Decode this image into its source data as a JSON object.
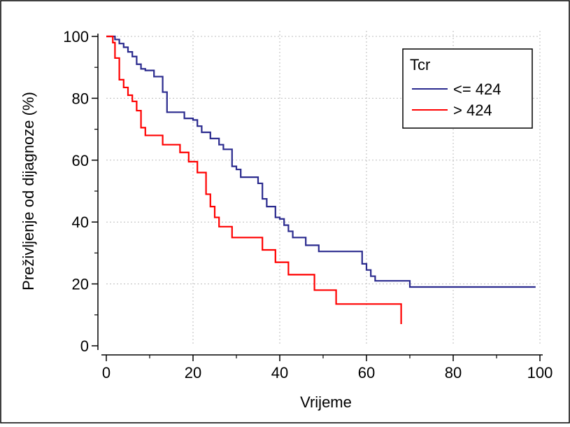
{
  "chart_data": {
    "type": "line",
    "step": true,
    "xlabel": "Vrijeme",
    "ylabel": "Preživljenje od dijagnoze (%)",
    "xlim": [
      0,
      100
    ],
    "ylim": [
      0,
      100
    ],
    "xticks": [
      0,
      20,
      40,
      60,
      80,
      100
    ],
    "yticks": [
      0,
      20,
      40,
      60,
      80,
      100
    ],
    "grid": true,
    "legend_title": "Tcr",
    "legend_position": "top-right",
    "series": [
      {
        "name": "<= 424",
        "color": "#2a2a8e",
        "x": [
          0,
          2,
          3,
          4,
          5,
          6,
          7,
          8,
          9,
          11,
          13,
          14,
          15,
          18,
          20,
          21,
          22,
          23,
          24,
          26,
          27,
          29,
          30,
          31,
          33,
          35,
          36,
          37,
          39,
          40,
          41,
          42,
          43,
          44,
          46,
          49,
          59,
          60,
          61,
          62,
          63,
          70,
          99
        ],
        "y": [
          100,
          99,
          97.7,
          96.5,
          95,
          93.5,
          91,
          89.5,
          89,
          87,
          82,
          75.5,
          75.5,
          73.5,
          73,
          71,
          69,
          69,
          67,
          65,
          63.5,
          58,
          57,
          54.5,
          54.5,
          52.5,
          47.5,
          45,
          41.5,
          41,
          39,
          37,
          35,
          35,
          32.5,
          30.5,
          26.5,
          24.5,
          22.5,
          21,
          21,
          19,
          19
        ]
      },
      {
        "name": "> 424",
        "color": "#ff0000",
        "x": [
          0,
          1.5,
          2,
          3,
          4,
          5,
          6,
          7,
          8,
          9,
          13,
          17,
          19,
          21,
          23,
          24,
          25,
          26,
          29,
          36,
          39,
          42,
          48,
          53,
          68
        ],
        "y": [
          100,
          98,
          93,
          86,
          83.5,
          81,
          79,
          76,
          70.5,
          68,
          65,
          62.5,
          59.5,
          56,
          49,
          45,
          41.5,
          38.5,
          35,
          31,
          27,
          23,
          18,
          13.5,
          7
        ]
      }
    ]
  }
}
